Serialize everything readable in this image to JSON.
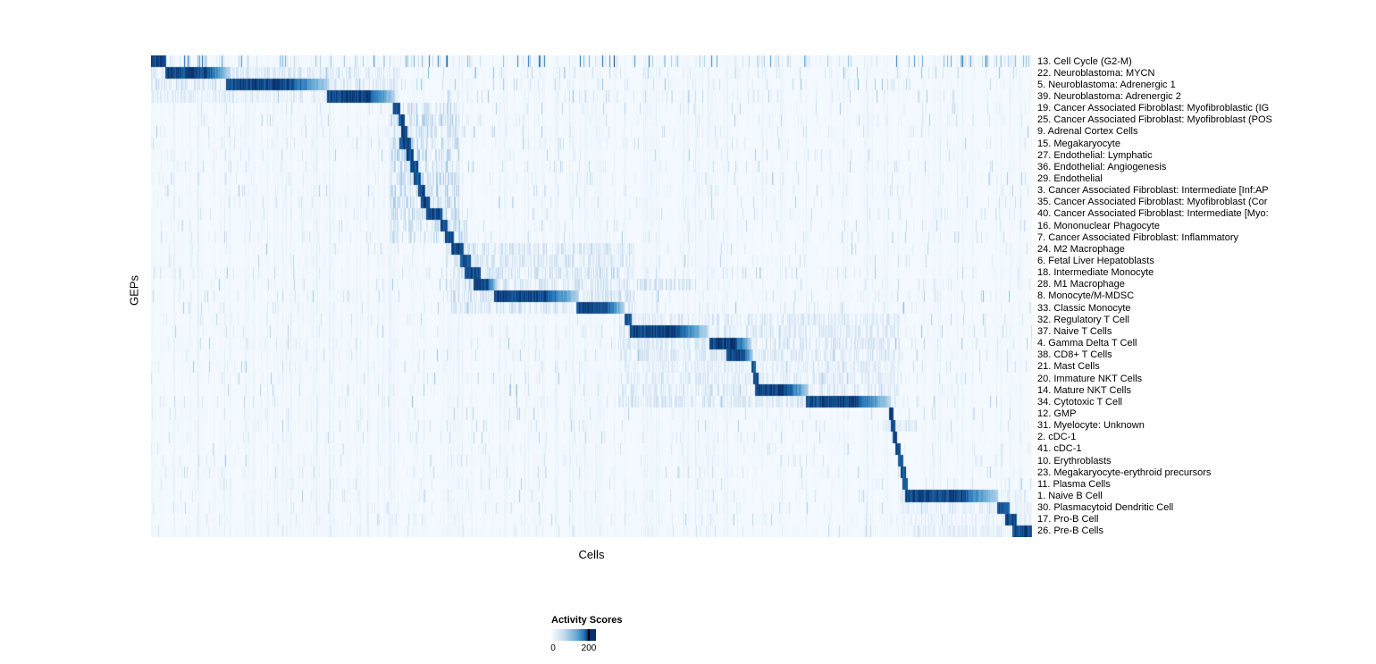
{
  "chart_data": {
    "type": "heatmap",
    "xlabel": "Cells",
    "ylabel": "GEPs",
    "colormap": {
      "name": "Blues",
      "stops": [
        "#f7fbff",
        "#c6dbef",
        "#6baed6",
        "#2171b5",
        "#08306b"
      ]
    },
    "legend": {
      "title": "Activity Scores",
      "min": 0,
      "max": 200,
      "min_label": "0",
      "max_label": "200"
    },
    "x_axis_range": [
      0,
      1
    ],
    "description": "Each row is a GEP; dark blue diagonal blocks mark the cell populations (fraction of x-axis) where that GEP activity score is high.",
    "rows": [
      {
        "label": "13. Cell Cycle (G2-M)",
        "block": [
          0.0,
          0.017
        ],
        "noise": 0.6
      },
      {
        "label": "22. Neuroblastoma: MYCN",
        "block": [
          0.016,
          0.09
        ],
        "soft": [
          0.0,
          0.28,
          0.18
        ],
        "noise": 0.2
      },
      {
        "label": "5. Neuroblastoma: Adrenergic 1",
        "block": [
          0.085,
          0.202
        ],
        "soft": [
          0.0,
          0.28,
          0.18
        ],
        "noise": 0.2
      },
      {
        "label": "39. Neuroblastoma: Adrenergic 2",
        "block": [
          0.199,
          0.277
        ],
        "soft": [
          0.0,
          0.28,
          0.15
        ],
        "noise": 0.15
      },
      {
        "label": "19. Cancer Associated Fibroblast: Myofibroblastic (IG",
        "block": [
          0.275,
          0.283
        ],
        "soft": [
          0.272,
          0.35,
          0.3
        ],
        "noise": 0.1
      },
      {
        "label": "25. Cancer Associated Fibroblast: Myofibroblast (POS",
        "block": [
          0.281,
          0.288
        ],
        "soft": [
          0.272,
          0.35,
          0.3
        ],
        "noise": 0.1
      },
      {
        "label": "9. Adrenal Cortex Cells",
        "block": [
          0.284,
          0.291
        ],
        "soft": [
          0.272,
          0.35,
          0.25
        ],
        "noise": 0.1
      },
      {
        "label": "15. Megakaryocyte",
        "block": [
          0.282,
          0.295
        ],
        "soft": [
          0.272,
          0.35,
          0.25
        ],
        "noise": 0.1
      },
      {
        "label": "27. Endothelial: Lymphatic",
        "block": [
          0.29,
          0.298
        ],
        "soft": [
          0.272,
          0.35,
          0.3
        ],
        "noise": 0.1
      },
      {
        "label": "36. Endothelial: Angiogenesis",
        "block": [
          0.294,
          0.303
        ],
        "soft": [
          0.272,
          0.35,
          0.3
        ],
        "noise": 0.1
      },
      {
        "label": "29. Endothelial",
        "block": [
          0.298,
          0.306
        ],
        "soft": [
          0.272,
          0.35,
          0.3
        ],
        "noise": 0.1
      },
      {
        "label": "3. Cancer Associated Fibroblast: Intermediate [Inf:AP",
        "block": [
          0.303,
          0.311
        ],
        "soft": [
          0.272,
          0.35,
          0.3
        ],
        "noise": 0.1
      },
      {
        "label": "35. Cancer Associated Fibroblast: Myofibroblast (Cor",
        "block": [
          0.306,
          0.316
        ],
        "soft": [
          0.272,
          0.35,
          0.3
        ],
        "noise": 0.1
      },
      {
        "label": "40. Cancer Associated Fibroblast: Intermediate [Myo:",
        "block": [
          0.312,
          0.33
        ],
        "soft": [
          0.272,
          0.35,
          0.3
        ],
        "noise": 0.1
      },
      {
        "label": "16. Mononuclear Phagocyte",
        "block": [
          0.328,
          0.337
        ],
        "soft": [
          0.272,
          0.36,
          0.25
        ],
        "noise": 0.1
      },
      {
        "label": "7. Cancer Associated Fibroblast: Inflammatory",
        "block": [
          0.334,
          0.344
        ],
        "soft": [
          0.272,
          0.36,
          0.25
        ],
        "noise": 0.1
      },
      {
        "label": "24. M2 Macrophage",
        "block": [
          0.341,
          0.355
        ],
        "soft": [
          0.335,
          0.55,
          0.22
        ],
        "noise": 0.12
      },
      {
        "label": "6. Fetal Liver Hepatoblasts",
        "block": [
          0.351,
          0.363
        ],
        "soft": [
          0.335,
          0.55,
          0.2
        ],
        "noise": 0.1
      },
      {
        "label": "18. Intermediate Monocyte",
        "block": [
          0.356,
          0.374
        ],
        "soft": [
          0.335,
          0.55,
          0.22
        ],
        "noise": 0.12
      },
      {
        "label": "28. M1 Macrophage",
        "block": [
          0.366,
          0.392
        ],
        "soft": [
          0.335,
          0.62,
          0.22
        ],
        "noise": 0.12
      },
      {
        "label": "8. Monocyte/M-MDSC",
        "block": [
          0.389,
          0.486
        ],
        "soft": [
          0.335,
          0.55,
          0.22
        ],
        "noise": 0.15
      },
      {
        "label": "33. Classic Monocyte",
        "block": [
          0.483,
          0.538
        ],
        "soft": [
          0.34,
          0.55,
          0.2
        ],
        "noise": 0.15
      },
      {
        "label": "32. Regulatory T Cell",
        "block": [
          0.538,
          0.546
        ],
        "soft": [
          0.53,
          0.85,
          0.18
        ],
        "noise": 0.12
      },
      {
        "label": "37. Naive T Cells",
        "block": [
          0.544,
          0.632
        ],
        "soft": [
          0.53,
          0.85,
          0.18
        ],
        "noise": 0.15
      },
      {
        "label": "4. Gamma Delta T Cell",
        "block": [
          0.634,
          0.682
        ],
        "soft": [
          0.53,
          0.85,
          0.18
        ],
        "noise": 0.12
      },
      {
        "label": "38. CD8+ T Cells",
        "block": [
          0.653,
          0.684
        ],
        "soft": [
          0.53,
          0.85,
          0.18
        ],
        "noise": 0.12
      },
      {
        "label": "21. Mast Cells",
        "block": [
          0.682,
          0.687
        ],
        "soft": [
          0.53,
          0.85,
          0.12
        ],
        "noise": 0.1
      },
      {
        "label": "20. Immature NKT Cells",
        "block": [
          0.684,
          0.69
        ],
        "soft": [
          0.53,
          0.85,
          0.15
        ],
        "noise": 0.1
      },
      {
        "label": "14. Mature NKT Cells",
        "block": [
          0.686,
          0.747
        ],
        "soft": [
          0.53,
          0.85,
          0.18
        ],
        "noise": 0.12
      },
      {
        "label": "34. Cytotoxic T Cell",
        "block": [
          0.744,
          0.84
        ],
        "soft": [
          0.53,
          0.85,
          0.18
        ],
        "noise": 0.15
      },
      {
        "label": "12. GMP",
        "block": [
          0.838,
          0.843
        ],
        "noise": 0.1
      },
      {
        "label": "31. Myelocyte: Unknown",
        "block": [
          0.84,
          0.845
        ],
        "soft": [
          0.83,
          0.87,
          0.2
        ],
        "noise": 0.12
      },
      {
        "label": "2. cDC-1",
        "block": [
          0.842,
          0.847
        ],
        "noise": 0.1
      },
      {
        "label": "41. cDC-1",
        "block": [
          0.845,
          0.851
        ],
        "noise": 0.1
      },
      {
        "label": "10. Erythroblasts",
        "block": [
          0.848,
          0.854
        ],
        "noise": 0.1
      },
      {
        "label": "23. Megakaryocyte-erythroid precursors",
        "block": [
          0.851,
          0.857
        ],
        "noise": 0.1
      },
      {
        "label": "11. Plasma Cells",
        "block": [
          0.853,
          0.859
        ],
        "noise": 0.1
      },
      {
        "label": "1. Naive B Cell",
        "block": [
          0.856,
          0.962
        ],
        "soft": [
          0.85,
          1.0,
          0.15
        ],
        "noise": 0.12
      },
      {
        "label": "30. Plasmacytoid Dendritic Cell",
        "block": [
          0.961,
          0.975
        ],
        "soft": [
          0.85,
          1.0,
          0.12
        ],
        "noise": 0.1
      },
      {
        "label": "17. Pro-B Cell",
        "block": [
          0.97,
          0.983
        ],
        "soft": [
          0.85,
          1.0,
          0.12
        ],
        "noise": 0.1
      },
      {
        "label": "26. Pre-B Cells",
        "block": [
          0.978,
          1.0
        ],
        "soft": [
          0.85,
          1.0,
          0.12
        ],
        "noise": 0.1
      }
    ]
  }
}
